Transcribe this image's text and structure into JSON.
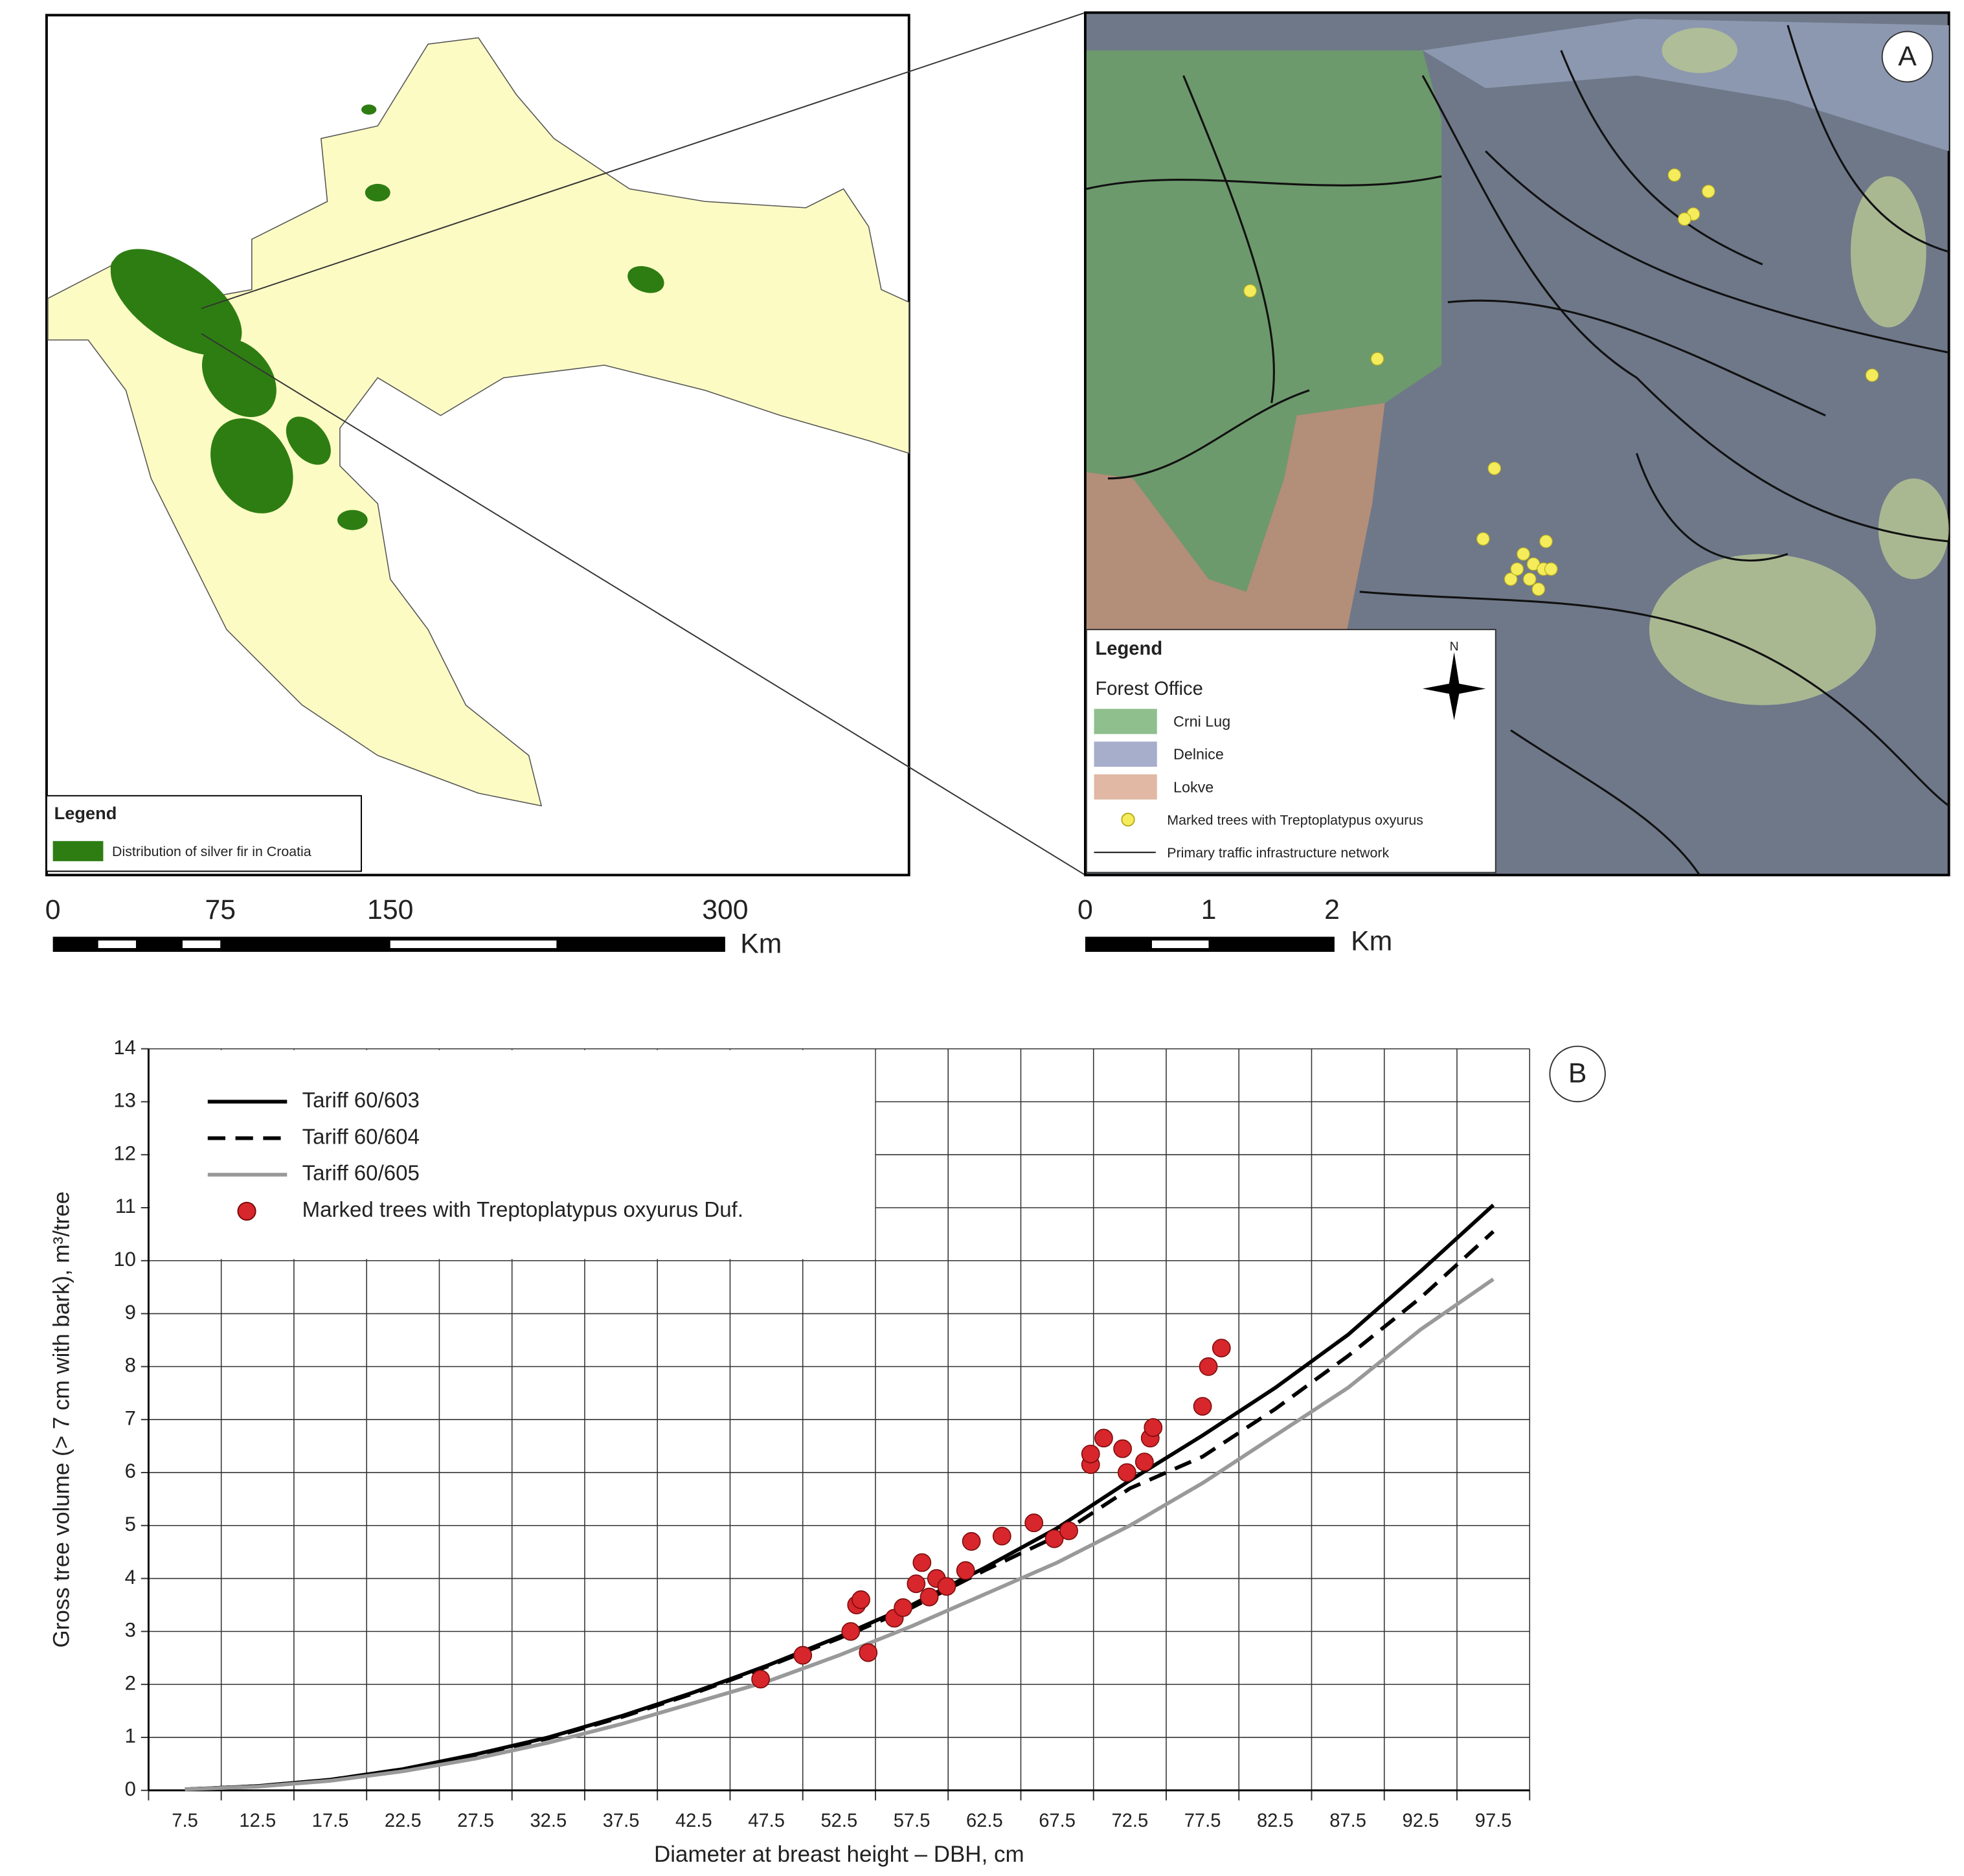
{
  "maps": {
    "left": {
      "legend_title": "Legend",
      "legend_item": "Distribution of silver fir in Croatia",
      "scale": [
        "0",
        "75",
        "150",
        "300"
      ],
      "scale_unit": "Km"
    },
    "right": {
      "panel": "A",
      "legend_title": "Legend",
      "legend_group": "Forest Office",
      "offices": [
        "Crni Lug",
        "Delnice",
        "Lokve"
      ],
      "marked_trees": "Marked trees with Treptoplatypus oxyurus",
      "traffic": "Primary traffic infrastructure network",
      "north": "N",
      "scale": [
        "0",
        "1",
        "2"
      ],
      "scale_unit": "Km"
    }
  },
  "chart_data": {
    "type": "line",
    "panel": "B",
    "xlabel": "Diameter at breast height – DBH, cm",
    "ylabel": "Gross tree volume (> 7 cm with bark), m³/tree",
    "x": [
      7.5,
      12.5,
      17.5,
      22.5,
      27.5,
      32.5,
      37.5,
      42.5,
      47.5,
      52.5,
      57.5,
      62.5,
      67.5,
      72.5,
      77.5,
      82.5,
      87.5,
      92.5,
      97.5
    ],
    "series": [
      {
        "name": "Tariff 60/603",
        "color": "#000000",
        "dash": "solid",
        "values": [
          0.02,
          0.08,
          0.2,
          0.4,
          0.68,
          1.0,
          1.4,
          1.85,
          2.35,
          2.9,
          3.5,
          4.2,
          4.95,
          5.85,
          6.7,
          7.6,
          8.6,
          9.8,
          11.05
        ]
      },
      {
        "name": "Tariff 60/604",
        "color": "#000000",
        "dash": "dashed",
        "values": [
          0.02,
          0.08,
          0.2,
          0.4,
          0.67,
          0.98,
          1.38,
          1.83,
          2.33,
          2.87,
          3.45,
          4.15,
          4.8,
          5.7,
          6.3,
          7.2,
          8.2,
          9.3,
          10.55
        ]
      },
      {
        "name": "Tariff 60/605",
        "color": "#999999",
        "dash": "solid",
        "values": [
          0.02,
          0.07,
          0.18,
          0.36,
          0.6,
          0.9,
          1.25,
          1.65,
          2.05,
          2.55,
          3.1,
          3.7,
          4.3,
          5.0,
          5.8,
          6.7,
          7.6,
          8.7,
          9.65
        ]
      },
      {
        "name": "Marked trees with Treptoplatypus oxyurus Duf.",
        "color": "#d7262c",
        "type": "scatter",
        "x": [
          47.1,
          50.0,
          53.3,
          53.7,
          54.0,
          54.5,
          56.3,
          56.9,
          57.8,
          58.2,
          58.7,
          59.2,
          59.9,
          61.2,
          61.6,
          63.7,
          65.9,
          67.3,
          68.3,
          69.8,
          69.8,
          70.7,
          72.0,
          72.3,
          73.5,
          73.9,
          74.1,
          77.5,
          77.9,
          78.8
        ],
        "values": [
          2.1,
          2.55,
          3.0,
          3.5,
          3.6,
          2.6,
          3.25,
          3.45,
          3.9,
          4.3,
          3.65,
          4.0,
          3.85,
          4.15,
          4.7,
          4.8,
          5.05,
          4.75,
          4.9,
          6.15,
          6.35,
          6.65,
          6.45,
          6.0,
          6.2,
          6.65,
          6.85,
          7.25,
          8.0,
          8.35
        ]
      }
    ],
    "xlim": [
      5,
      100
    ],
    "xticks": [
      7.5,
      12.5,
      17.5,
      22.5,
      27.5,
      32.5,
      37.5,
      42.5,
      47.5,
      52.5,
      57.5,
      62.5,
      67.5,
      72.5,
      77.5,
      82.5,
      87.5,
      92.5,
      97.5
    ],
    "xgrid": [
      5,
      10,
      15,
      20,
      25,
      30,
      35,
      40,
      45,
      50,
      55,
      60,
      65,
      70,
      75,
      80,
      85,
      90,
      95,
      100
    ],
    "ylim": [
      0,
      14
    ],
    "yticks": [
      0,
      1,
      2,
      3,
      4,
      5,
      6,
      7,
      8,
      9,
      10,
      11,
      12,
      13,
      14
    ],
    "grid": true,
    "legend": "top-left"
  }
}
